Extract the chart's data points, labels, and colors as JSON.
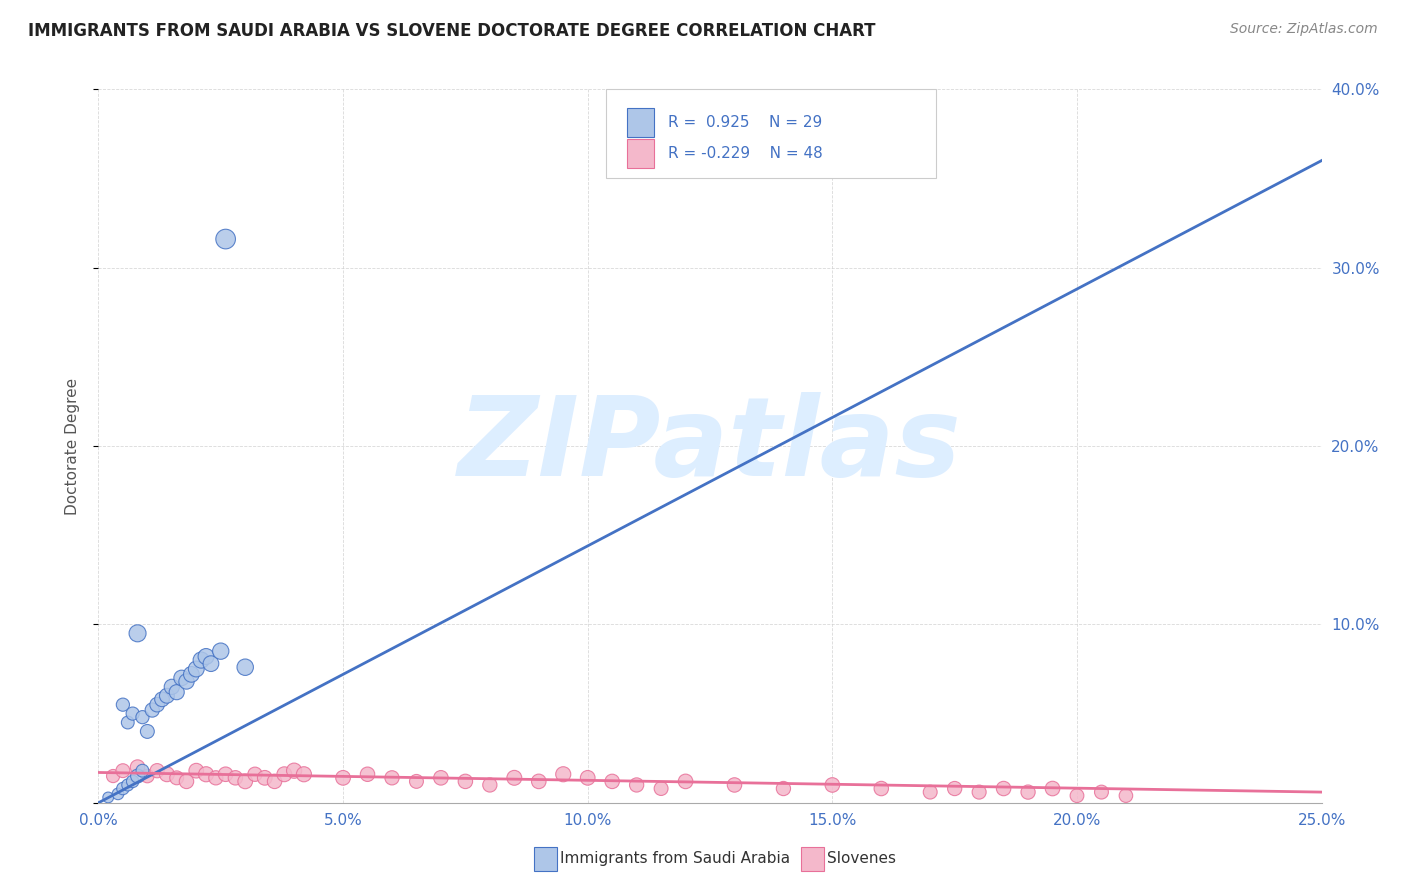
{
  "title": "IMMIGRANTS FROM SAUDI ARABIA VS SLOVENE DOCTORATE DEGREE CORRELATION CHART",
  "source_text": "Source: ZipAtlas.com",
  "ylabel": "Doctorate Degree",
  "xlim": [
    0.0,
    0.25
  ],
  "ylim": [
    0.0,
    0.4
  ],
  "xticks": [
    0.0,
    0.05,
    0.1,
    0.15,
    0.2,
    0.25
  ],
  "yticks": [
    0.0,
    0.1,
    0.2,
    0.3,
    0.4
  ],
  "xtick_labels": [
    "0.0%",
    "5.0%",
    "10.0%",
    "15.0%",
    "20.0%",
    "25.0%"
  ],
  "ytick_labels": [
    "",
    "10.0%",
    "20.0%",
    "30.0%",
    "40.0%"
  ],
  "blue_scatter_x": [
    0.002,
    0.004,
    0.005,
    0.005,
    0.006,
    0.006,
    0.007,
    0.007,
    0.008,
    0.008,
    0.009,
    0.009,
    0.01,
    0.011,
    0.012,
    0.013,
    0.014,
    0.015,
    0.016,
    0.017,
    0.018,
    0.019,
    0.02,
    0.021,
    0.022,
    0.023,
    0.025,
    0.026,
    0.03
  ],
  "blue_scatter_y": [
    0.003,
    0.005,
    0.008,
    0.055,
    0.01,
    0.045,
    0.012,
    0.05,
    0.015,
    0.095,
    0.018,
    0.048,
    0.04,
    0.052,
    0.055,
    0.058,
    0.06,
    0.065,
    0.062,
    0.07,
    0.068,
    0.072,
    0.075,
    0.08,
    0.082,
    0.078,
    0.085,
    0.316,
    0.076
  ],
  "blue_scatter_sizes": [
    60,
    70,
    80,
    90,
    75,
    85,
    80,
    90,
    100,
    150,
    85,
    90,
    100,
    105,
    110,
    112,
    115,
    120,
    118,
    125,
    122,
    128,
    130,
    135,
    132,
    128,
    138,
    200,
    140
  ],
  "pink_scatter_x": [
    0.003,
    0.005,
    0.008,
    0.01,
    0.012,
    0.014,
    0.016,
    0.018,
    0.02,
    0.022,
    0.024,
    0.026,
    0.028,
    0.03,
    0.032,
    0.034,
    0.036,
    0.038,
    0.04,
    0.042,
    0.05,
    0.055,
    0.06,
    0.065,
    0.07,
    0.075,
    0.08,
    0.085,
    0.09,
    0.095,
    0.1,
    0.105,
    0.11,
    0.115,
    0.12,
    0.13,
    0.14,
    0.15,
    0.16,
    0.17,
    0.175,
    0.18,
    0.185,
    0.19,
    0.195,
    0.2,
    0.205,
    0.21
  ],
  "pink_scatter_y": [
    0.015,
    0.018,
    0.02,
    0.015,
    0.018,
    0.016,
    0.014,
    0.012,
    0.018,
    0.016,
    0.014,
    0.016,
    0.014,
    0.012,
    0.016,
    0.014,
    0.012,
    0.016,
    0.018,
    0.016,
    0.014,
    0.016,
    0.014,
    0.012,
    0.014,
    0.012,
    0.01,
    0.014,
    0.012,
    0.016,
    0.014,
    0.012,
    0.01,
    0.008,
    0.012,
    0.01,
    0.008,
    0.01,
    0.008,
    0.006,
    0.008,
    0.006,
    0.008,
    0.006,
    0.008,
    0.004,
    0.006,
    0.004
  ],
  "pink_scatter_sizes": [
    90,
    100,
    110,
    95,
    105,
    115,
    100,
    108,
    112,
    118,
    105,
    110,
    108,
    112,
    106,
    112,
    108,
    115,
    120,
    118,
    112,
    108,
    105,
    100,
    110,
    108,
    105,
    115,
    110,
    118,
    112,
    108,
    105,
    100,
    110,
    108,
    105,
    110,
    108,
    100,
    105,
    102,
    108,
    105,
    110,
    98,
    100,
    95
  ],
  "blue_line_x": [
    0.0,
    0.25
  ],
  "blue_line_y": [
    0.0,
    0.36
  ],
  "pink_line_x": [
    0.0,
    0.25
  ],
  "pink_line_y": [
    0.017,
    0.006
  ],
  "blue_color": "#aec6e8",
  "blue_line_color": "#4472c4",
  "pink_color": "#f4b8cb",
  "pink_line_color": "#e87099",
  "background_color": "#ffffff",
  "grid_color": "#d0d0d0",
  "title_color": "#222222",
  "axis_label_color": "#555555",
  "right_tick_color": "#4472c4",
  "bottom_tick_color": "#4472c4",
  "watermark_text": "ZIPatlas",
  "watermark_color": "#ddeeff",
  "legend_R_blue": "R =  0.925",
  "legend_N_blue": "N = 29",
  "legend_R_pink": "R = -0.229",
  "legend_N_pink": "N = 48",
  "legend_label_blue": "Immigrants from Saudi Arabia",
  "legend_label_pink": "Slovenes",
  "title_fontsize": 12,
  "axis_fontsize": 11,
  "tick_fontsize": 11,
  "source_fontsize": 10,
  "legend_text_color_blue": "#4472c4",
  "legend_text_color_pink": "#4472c4"
}
